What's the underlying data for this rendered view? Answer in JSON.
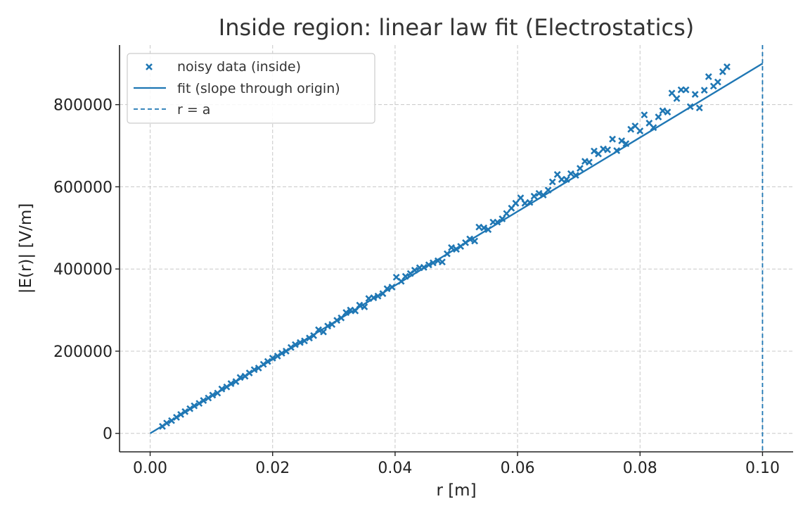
{
  "chart_data": {
    "type": "scatter",
    "title": "Inside region: linear law fit (Electrostatics)",
    "xlabel": "r [m]",
    "ylabel": "|E(r)| [V/m]",
    "xlim": [
      -0.005,
      0.105
    ],
    "ylim": [
      -45000,
      945000
    ],
    "xticks": [
      0.0,
      0.02,
      0.04,
      0.06,
      0.08,
      0.1
    ],
    "xtick_labels": [
      "0.00",
      "0.02",
      "0.04",
      "0.06",
      "0.08",
      "0.10"
    ],
    "yticks": [
      0,
      200000,
      400000,
      600000,
      800000
    ],
    "ytick_labels": [
      "0",
      "200000",
      "400000",
      "600000",
      "800000"
    ],
    "grid": true,
    "legend_position": "top-left",
    "color": "#1f77b4",
    "series": [
      {
        "name": "noisy data (inside)",
        "kind": "scatter",
        "marker": "x",
        "points": [
          [
            0.002,
            17000
          ],
          [
            0.0027,
            25000
          ],
          [
            0.0035,
            31000
          ],
          [
            0.0043,
            39000
          ],
          [
            0.005,
            46000
          ],
          [
            0.0057,
            53000
          ],
          [
            0.0065,
            60000
          ],
          [
            0.0072,
            67000
          ],
          [
            0.008,
            73000
          ],
          [
            0.0087,
            80000
          ],
          [
            0.0095,
            86000
          ],
          [
            0.0102,
            93000
          ],
          [
            0.011,
            98000
          ],
          [
            0.0117,
            108000
          ],
          [
            0.0125,
            113000
          ],
          [
            0.0132,
            121000
          ],
          [
            0.014,
            126000
          ],
          [
            0.0147,
            136000
          ],
          [
            0.0155,
            139000
          ],
          [
            0.0162,
            147000
          ],
          [
            0.017,
            155000
          ],
          [
            0.0177,
            159000
          ],
          [
            0.0185,
            168000
          ],
          [
            0.0192,
            175000
          ],
          [
            0.02,
            183000
          ],
          [
            0.0208,
            188000
          ],
          [
            0.0215,
            195000
          ],
          [
            0.0222,
            200000
          ],
          [
            0.023,
            209000
          ],
          [
            0.0237,
            216000
          ],
          [
            0.0245,
            221000
          ],
          [
            0.0252,
            225000
          ],
          [
            0.026,
            232000
          ],
          [
            0.0267,
            238000
          ],
          [
            0.0275,
            252000
          ],
          [
            0.0283,
            247000
          ],
          [
            0.029,
            261000
          ],
          [
            0.0297,
            265000
          ],
          [
            0.0305,
            275000
          ],
          [
            0.0312,
            281000
          ],
          [
            0.032,
            294000
          ],
          [
            0.0327,
            300000
          ],
          [
            0.0335,
            298000
          ],
          [
            0.0342,
            312000
          ],
          [
            0.035,
            308000
          ],
          [
            0.0357,
            328000
          ],
          [
            0.0365,
            330000
          ],
          [
            0.0372,
            334000
          ],
          [
            0.038,
            340000
          ],
          [
            0.0387,
            352000
          ],
          [
            0.0395,
            356000
          ],
          [
            0.0402,
            380000
          ],
          [
            0.041,
            370000
          ],
          [
            0.0417,
            382000
          ],
          [
            0.0425,
            389000
          ],
          [
            0.0432,
            397000
          ],
          [
            0.044,
            403000
          ],
          [
            0.0447,
            404000
          ],
          [
            0.0455,
            410000
          ],
          [
            0.0462,
            415000
          ],
          [
            0.047,
            420000
          ],
          [
            0.0477,
            417000
          ],
          [
            0.0485,
            437000
          ],
          [
            0.0492,
            452000
          ],
          [
            0.05,
            448000
          ],
          [
            0.0507,
            455000
          ],
          [
            0.0515,
            464000
          ],
          [
            0.0522,
            473000
          ],
          [
            0.053,
            468000
          ],
          [
            0.0537,
            502000
          ],
          [
            0.0545,
            500000
          ],
          [
            0.0552,
            496000
          ],
          [
            0.056,
            514000
          ],
          [
            0.0567,
            514000
          ],
          [
            0.0575,
            522000
          ],
          [
            0.0582,
            535000
          ],
          [
            0.059,
            548000
          ],
          [
            0.0597,
            560000
          ],
          [
            0.0605,
            573000
          ],
          [
            0.0612,
            560000
          ],
          [
            0.062,
            562000
          ],
          [
            0.0627,
            577000
          ],
          [
            0.0635,
            584000
          ],
          [
            0.0642,
            580000
          ],
          [
            0.065,
            592000
          ],
          [
            0.0657,
            612000
          ],
          [
            0.0665,
            630000
          ],
          [
            0.0672,
            618000
          ],
          [
            0.068,
            618000
          ],
          [
            0.0687,
            632000
          ],
          [
            0.0695,
            628000
          ],
          [
            0.0702,
            645000
          ],
          [
            0.071,
            662000
          ],
          [
            0.0717,
            660000
          ],
          [
            0.0725,
            687000
          ],
          [
            0.0732,
            680000
          ],
          [
            0.074,
            692000
          ],
          [
            0.0747,
            690000
          ],
          [
            0.0755,
            716000
          ],
          [
            0.0762,
            688000
          ],
          [
            0.077,
            712000
          ],
          [
            0.0777,
            705000
          ],
          [
            0.0785,
            740000
          ],
          [
            0.0792,
            748000
          ],
          [
            0.08,
            736000
          ],
          [
            0.0807,
            775000
          ],
          [
            0.0815,
            755000
          ],
          [
            0.0822,
            744000
          ],
          [
            0.083,
            770000
          ],
          [
            0.0837,
            785000
          ],
          [
            0.0845,
            782000
          ],
          [
            0.0852,
            828000
          ],
          [
            0.086,
            815000
          ],
          [
            0.0867,
            836000
          ],
          [
            0.0875,
            836000
          ],
          [
            0.0882,
            795000
          ],
          [
            0.089,
            825000
          ],
          [
            0.0897,
            792000
          ],
          [
            0.0905,
            835000
          ],
          [
            0.0912,
            868000
          ],
          [
            0.092,
            845000
          ],
          [
            0.0927,
            855000
          ],
          [
            0.0935,
            880000
          ],
          [
            0.0942,
            892000
          ]
        ]
      },
      {
        "name": "fit (slope through origin)",
        "kind": "line",
        "x": [
          0.0,
          0.1
        ],
        "y": [
          0,
          900000
        ]
      },
      {
        "name": "r = a",
        "kind": "vline",
        "x": 0.1,
        "style": "dashed"
      }
    ]
  }
}
